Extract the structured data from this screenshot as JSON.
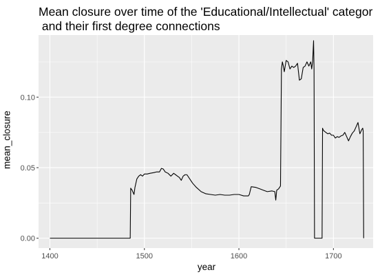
{
  "chart_data": {
    "type": "line",
    "title_line1": "Mean closure over time of the 'Educational/Intellectual' categor",
    "title_line2": " and their first degree connections",
    "xlabel": "year",
    "ylabel": "mean_closure",
    "xlim": [
      1388,
      1742
    ],
    "ylim": [
      -0.007,
      0.144
    ],
    "x_ticks": [
      1400,
      1500,
      1600,
      1700
    ],
    "y_ticks": [
      0.0,
      0.05,
      0.1
    ],
    "y_tick_labels": [
      "0.00",
      "0.05",
      "0.10"
    ],
    "grid": true,
    "panel_color": "#ebebeb",
    "line_color": "#000000",
    "series": [
      {
        "x": [
          1400,
          1485,
          1485.5,
          1487,
          1489,
          1490,
          1492,
          1494,
          1496,
          1498,
          1500,
          1503,
          1506,
          1510,
          1513,
          1516,
          1518,
          1520,
          1522,
          1525,
          1528,
          1531,
          1533,
          1535,
          1537,
          1539,
          1541,
          1543,
          1545,
          1548,
          1551,
          1555,
          1560,
          1565,
          1570,
          1575,
          1580,
          1585,
          1590,
          1595,
          1600,
          1605,
          1610,
          1611,
          1613,
          1618,
          1622,
          1626,
          1630,
          1635,
          1638,
          1639,
          1640,
          1642,
          1643,
          1644,
          1645,
          1646,
          1647,
          1648,
          1650,
          1652,
          1654,
          1656,
          1658,
          1660,
          1662,
          1664,
          1666,
          1668,
          1670,
          1672,
          1674,
          1676,
          1677,
          1678,
          1679,
          1679.5,
          1680,
          1684,
          1688,
          1688.5,
          1689,
          1690,
          1692,
          1694,
          1696,
          1698,
          1700,
          1702,
          1704,
          1706,
          1708,
          1710,
          1712,
          1714,
          1716,
          1718,
          1720,
          1722,
          1724,
          1726,
          1728,
          1730,
          1731,
          1731.5,
          1732
        ],
        "y": [
          0,
          0,
          0.0355,
          0.034,
          0.031,
          0.036,
          0.042,
          0.044,
          0.045,
          0.044,
          0.0455,
          0.0455,
          0.046,
          0.0465,
          0.047,
          0.047,
          0.0495,
          0.049,
          0.047,
          0.046,
          0.044,
          0.046,
          0.045,
          0.044,
          0.043,
          0.041,
          0.044,
          0.045,
          0.045,
          0.042,
          0.039,
          0.036,
          0.033,
          0.0315,
          0.031,
          0.0305,
          0.031,
          0.0305,
          0.0305,
          0.031,
          0.031,
          0.03,
          0.03,
          0.031,
          0.0365,
          0.036,
          0.035,
          0.034,
          0.033,
          0.0335,
          0.033,
          0.027,
          0.034,
          0.035,
          0.036,
          0.037,
          0.12,
          0.125,
          0.122,
          0.118,
          0.126,
          0.125,
          0.12,
          0.122,
          0.121,
          0.122,
          0.124,
          0.112,
          0.113,
          0.121,
          0.122,
          0.125,
          0.122,
          0.125,
          0.12,
          0.125,
          0.14,
          0.12,
          0,
          0,
          0,
          0.078,
          0.077,
          0.076,
          0.075,
          0.074,
          0.0745,
          0.073,
          0.073,
          0.071,
          0.072,
          0.0715,
          0.0725,
          0.073,
          0.075,
          0.072,
          0.069,
          0.072,
          0.0745,
          0.076,
          0.079,
          0.082,
          0.074,
          0.077,
          0.078,
          0.076,
          0
        ]
      }
    ]
  }
}
